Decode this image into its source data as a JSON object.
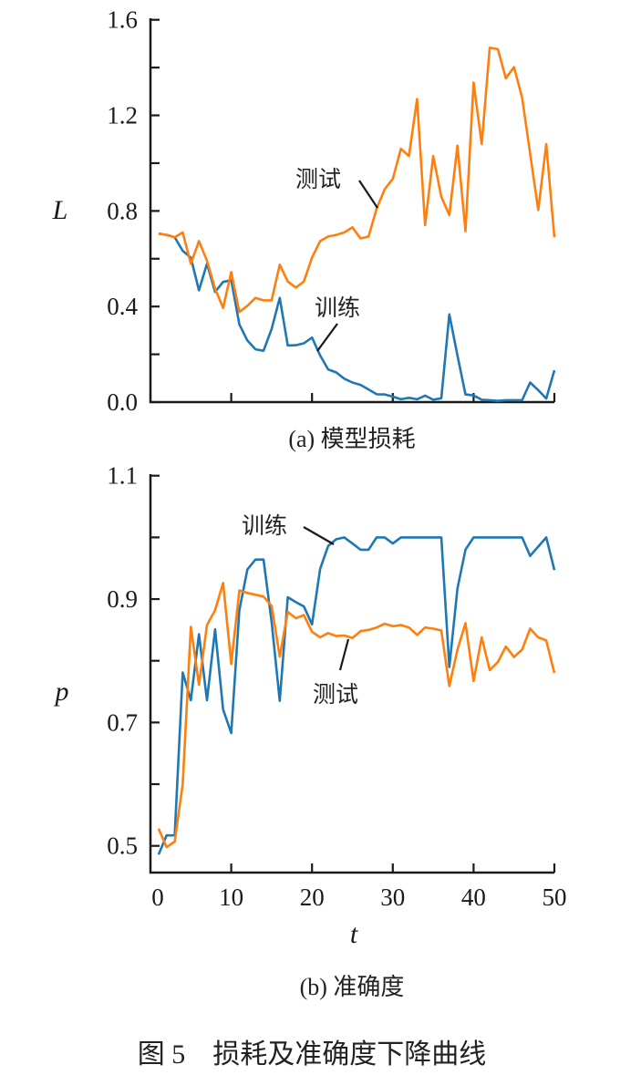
{
  "figure_caption": "图 5　损耗及准确度下降曲线",
  "colors": {
    "train": "#1f77b4",
    "test": "#ff7f0e"
  },
  "chart_data": [
    {
      "type": "line",
      "caption": "(a) 模型损耗",
      "xlabel": "",
      "ylabel": "L",
      "xlim": [
        0,
        50
      ],
      "ylim": [
        0,
        1.6
      ],
      "xticks": [
        0,
        10,
        20,
        30,
        40,
        50
      ],
      "xtick_labels_shown": false,
      "yticks": [
        0.0,
        0.2,
        0.4,
        0.6,
        0.8,
        1.0,
        1.2,
        1.4,
        1.6
      ],
      "ytick_labels": [
        "0.0",
        "0.4",
        "0.8",
        "1.2",
        "1.6"
      ],
      "ytick_label_values": [
        0.0,
        0.4,
        0.8,
        1.2,
        1.6
      ],
      "grid": false,
      "x": [
        1,
        2,
        3,
        4,
        5,
        6,
        7,
        8,
        9,
        10,
        11,
        12,
        13,
        14,
        15,
        16,
        17,
        18,
        19,
        20,
        21,
        22,
        23,
        24,
        25,
        26,
        27,
        28,
        29,
        30,
        31,
        32,
        33,
        34,
        35,
        36,
        37,
        38,
        39,
        40,
        41,
        42,
        43,
        44,
        45,
        46,
        47,
        48,
        49,
        50
      ],
      "series": [
        {
          "name": "训练",
          "color": "#1f77b4",
          "values": [
            0.705,
            0.7,
            0.69,
            0.633,
            0.605,
            0.468,
            0.579,
            0.461,
            0.503,
            0.51,
            0.325,
            0.258,
            0.221,
            0.215,
            0.306,
            0.436,
            0.237,
            0.238,
            0.246,
            0.27,
            0.195,
            0.137,
            0.124,
            0.098,
            0.082,
            0.072,
            0.053,
            0.033,
            0.032,
            0.023,
            0.012,
            0.018,
            0.012,
            0.027,
            0.01,
            0.016,
            0.367,
            0.195,
            0.032,
            0.028,
            0.01,
            0.008,
            0.005,
            0.008,
            0.008,
            0.008,
            0.082,
            0.05,
            0.015,
            0.133
          ]
        },
        {
          "name": "测试",
          "color": "#ff7f0e",
          "values": [
            0.705,
            0.7,
            0.69,
            0.71,
            0.579,
            0.674,
            0.592,
            0.475,
            0.394,
            0.544,
            0.377,
            0.403,
            0.436,
            0.426,
            0.426,
            0.575,
            0.505,
            0.479,
            0.505,
            0.605,
            0.674,
            0.693,
            0.7,
            0.71,
            0.731,
            0.685,
            0.693,
            0.81,
            0.891,
            0.934,
            1.06,
            1.03,
            1.268,
            0.741,
            1.03,
            0.859,
            0.783,
            1.073,
            0.715,
            1.337,
            1.08,
            1.483,
            1.477,
            1.355,
            1.402,
            1.275,
            1.04,
            0.804,
            1.08,
            0.69
          ]
        }
      ],
      "annotations": [
        {
          "text": "测试",
          "series": "测试",
          "at": [
            28,
            0.81
          ]
        },
        {
          "text": "训练",
          "series": "训练",
          "at": [
            21,
            0.21
          ]
        }
      ]
    },
    {
      "type": "line",
      "caption": "(b) 准确度",
      "xlabel": "t",
      "ylabel": "p",
      "xlim": [
        0,
        50
      ],
      "ylim": [
        0.45,
        1.1
      ],
      "xticks": [
        0,
        10,
        20,
        30,
        40,
        50
      ],
      "xtick_labels": [
        "0",
        "10",
        "20",
        "30",
        "40",
        "50"
      ],
      "yticks": [
        0.5,
        0.6,
        0.7,
        0.8,
        0.9,
        1.0,
        1.1
      ],
      "ytick_labels": [
        "0.5",
        "0.7",
        "0.9",
        "1.1"
      ],
      "ytick_label_values": [
        0.5,
        0.7,
        0.9,
        1.1
      ],
      "grid": false,
      "x": [
        1,
        2,
        3,
        4,
        5,
        6,
        7,
        8,
        9,
        10,
        11,
        12,
        13,
        14,
        15,
        16,
        17,
        18,
        19,
        20,
        21,
        22,
        23,
        24,
        25,
        26,
        27,
        28,
        29,
        30,
        31,
        32,
        33,
        34,
        35,
        36,
        37,
        38,
        39,
        40,
        41,
        42,
        43,
        44,
        45,
        46,
        47,
        48,
        49,
        50
      ],
      "series": [
        {
          "name": "训练",
          "color": "#1f77b4",
          "values": [
            0.486,
            0.517,
            0.517,
            0.781,
            0.736,
            0.843,
            0.736,
            0.851,
            0.721,
            0.683,
            0.882,
            0.948,
            0.964,
            0.964,
            0.863,
            0.735,
            0.903,
            0.895,
            0.888,
            0.859,
            0.949,
            0.986,
            0.997,
            1.0,
            0.99,
            0.98,
            0.98,
            1.0,
            1.0,
            0.99,
            1.0,
            1.0,
            1.0,
            1.0,
            1.0,
            1.0,
            0.79,
            0.917,
            0.98,
            1.0,
            1.0,
            1.0,
            1.0,
            1.0,
            1.0,
            1.0,
            0.97,
            0.985,
            1.0,
            0.947
          ]
        },
        {
          "name": "测试",
          "color": "#ff7f0e",
          "values": [
            0.528,
            0.498,
            0.507,
            0.6,
            0.855,
            0.761,
            0.858,
            0.882,
            0.926,
            0.795,
            0.914,
            0.91,
            0.907,
            0.904,
            0.889,
            0.807,
            0.879,
            0.869,
            0.874,
            0.847,
            0.838,
            0.845,
            0.84,
            0.841,
            0.837,
            0.848,
            0.85,
            0.854,
            0.86,
            0.856,
            0.858,
            0.854,
            0.842,
            0.854,
            0.852,
            0.849,
            0.759,
            0.818,
            0.861,
            0.767,
            0.838,
            0.785,
            0.798,
            0.823,
            0.806,
            0.818,
            0.852,
            0.838,
            0.833,
            0.78
          ]
        }
      ],
      "annotations": [
        {
          "text": "训练",
          "series": "训练",
          "at": [
            23,
            0.99
          ]
        },
        {
          "text": "测试",
          "series": "测试",
          "at": [
            25,
            0.84
          ]
        }
      ]
    }
  ]
}
